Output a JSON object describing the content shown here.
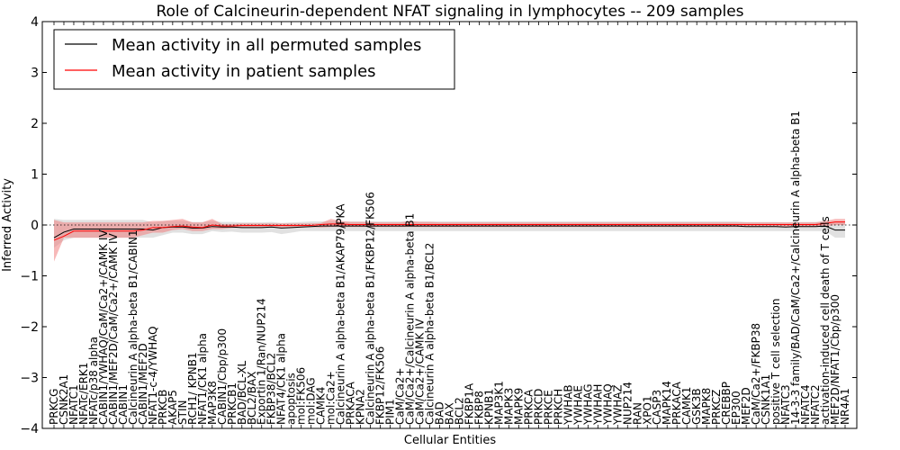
{
  "chart_data": {
    "type": "line",
    "title": "Role of Calcineurin-dependent NFAT signaling in lymphocytes -- 209 samples",
    "xlabel": "Cellular Entities",
    "ylabel": "Inferred Activity",
    "ylim": [
      -4,
      4
    ],
    "yticks": [
      -4,
      -3,
      -2,
      -1,
      0,
      1,
      2,
      3,
      4
    ],
    "ytick_labels": [
      "−4",
      "−3",
      "−2",
      "−1",
      "0",
      "1",
      "2",
      "3",
      "4"
    ],
    "legend": {
      "placement": "top-left"
    },
    "colors": {
      "permuted": "#000000",
      "patient": "#ff0000",
      "permuted_band": "#c8c8c8",
      "patient_band": "#f08080"
    },
    "categories": [
      "PRKCG",
      "CSNK2A1",
      "NFATC1",
      "NFATc/ERK1",
      "NFATc/p38 alpha",
      "CABIN1/YWHAQ/CaM/Ca2+/CAMK IV",
      "CABIN1/MEF2D/CaM/Ca2+/CAMK IV",
      "CABIN1",
      "Calcineurin A alpha-beta B1/CABIN1",
      "CABIN1/MEF2D",
      "NFAT1-c-4/YWHAQ",
      "PRKCB",
      "AKAP5",
      "STIN",
      "RCH1/ KPNB1",
      "NFAT1/CK1 alpha",
      "MAP3K8",
      "CABIN1/Cbp/p300",
      "PRKCB1",
      "BAD/BCL-XL",
      "BCL2/BAX",
      "Exportin 1/Ran/NUP214",
      "FKBP38/BCL2",
      "NFAT4/CK1 alpha",
      "apoptosis",
      "mol:FK506",
      "mol:DAG",
      "CAMK4",
      "mol:Ca2+",
      "Calcineurin A alpha-beta B1/AKAP79/PKA",
      "PRKACA",
      "KPNA2",
      "Calcineurin A alpha-beta B1/FKBP12/FK506",
      "FKBP12/FK506",
      "PIM1",
      "CaM/Ca2+",
      "CaM/Ca2+/Calcineurin A alpha-beta B1",
      "CaM/Ca2+/CAMK IV",
      "Calcineurin A alpha-beta B1/BCL2",
      "BAD",
      "BAX",
      "BCL2",
      "FKBP1A",
      "FKBP8",
      "KPNB1",
      "MAP3K1",
      "MAPK3",
      "MAPK9",
      "PRKCA",
      "PRKCD",
      "PRKCE",
      "PRKCH",
      "YWHAB",
      "YWHAE",
      "YWHAG",
      "YWHAH",
      "YWHAQ",
      "YWHAZ",
      "NUP214",
      "RAN",
      "XPO1",
      "CASP3",
      "MAPK14",
      "PRKACA",
      "CAMK1",
      "GSK3B",
      "MAPK8",
      "PRKCZ",
      "CREBBP",
      "EP300",
      "MEF2D",
      "CaM/Ca2+/FKBP38",
      "CSNK1A1",
      "positive T cell selection",
      "NFATC3",
      "14-3-3 family/BAD/CaM/Ca2+/Calcineurin A alpha-beta B1",
      "NFATC4",
      "NFATC2",
      "activation-induced cell death of T cells",
      "MEF2D/NFAT1/Cbp/p300",
      "NR4A1"
    ],
    "series": [
      {
        "name": "Mean activity in all permuted samples",
        "values": [
          -0.25,
          -0.14,
          -0.08,
          -0.08,
          -0.08,
          -0.08,
          -0.08,
          -0.08,
          -0.08,
          -0.08,
          -0.1,
          -0.05,
          -0.04,
          -0.04,
          -0.06,
          -0.06,
          -0.03,
          -0.04,
          -0.04,
          -0.05,
          -0.05,
          -0.05,
          -0.04,
          -0.06,
          -0.05,
          -0.04,
          -0.03,
          -0.02,
          -0.02,
          -0.02,
          -0.02,
          -0.02,
          -0.02,
          -0.02,
          -0.02,
          -0.02,
          -0.02,
          -0.02,
          -0.02,
          -0.02,
          -0.02,
          -0.02,
          -0.02,
          -0.02,
          -0.02,
          -0.02,
          -0.02,
          -0.02,
          -0.02,
          -0.02,
          -0.02,
          -0.02,
          -0.02,
          -0.02,
          -0.02,
          -0.02,
          -0.02,
          -0.02,
          -0.02,
          -0.02,
          -0.02,
          -0.02,
          -0.02,
          -0.02,
          -0.02,
          -0.02,
          -0.02,
          -0.02,
          -0.02,
          -0.02,
          -0.03,
          -0.03,
          -0.03,
          -0.03,
          -0.04,
          -0.03,
          -0.03,
          -0.03,
          -0.02,
          -0.1,
          -0.1
        ],
        "band_low": [
          -0.45,
          -0.3,
          -0.25,
          -0.25,
          -0.25,
          -0.25,
          -0.25,
          -0.25,
          -0.25,
          -0.25,
          -0.25,
          -0.2,
          -0.15,
          -0.15,
          -0.18,
          -0.18,
          -0.12,
          -0.14,
          -0.13,
          -0.15,
          -0.15,
          -0.15,
          -0.14,
          -0.18,
          -0.15,
          -0.12,
          -0.12,
          -0.12,
          -0.12,
          -0.12,
          -0.12,
          -0.12,
          -0.12,
          -0.12,
          -0.12,
          -0.12,
          -0.12,
          -0.12,
          -0.12,
          -0.12,
          -0.12,
          -0.12,
          -0.12,
          -0.12,
          -0.12,
          -0.12,
          -0.12,
          -0.12,
          -0.12,
          -0.12,
          -0.12,
          -0.12,
          -0.12,
          -0.12,
          -0.12,
          -0.12,
          -0.12,
          -0.12,
          -0.12,
          -0.12,
          -0.12,
          -0.12,
          -0.12,
          -0.12,
          -0.12,
          -0.12,
          -0.12,
          -0.12,
          -0.12,
          -0.12,
          -0.12,
          -0.12,
          -0.12,
          -0.12,
          -0.12,
          -0.12,
          -0.12,
          -0.12,
          -0.12,
          -0.25,
          -0.25
        ],
        "band_high": [
          0.12,
          0.1,
          0.1,
          0.1,
          0.1,
          0.1,
          0.1,
          0.1,
          0.1,
          0.1,
          0.05,
          0.08,
          0.08,
          0.08,
          0.06,
          0.06,
          0.08,
          0.06,
          0.06,
          0.05,
          0.05,
          0.05,
          0.06,
          0.04,
          0.05,
          0.06,
          0.07,
          0.07,
          0.07,
          0.07,
          0.07,
          0.07,
          0.07,
          0.07,
          0.07,
          0.07,
          0.07,
          0.07,
          0.07,
          0.07,
          0.07,
          0.07,
          0.07,
          0.07,
          0.07,
          0.07,
          0.07,
          0.07,
          0.07,
          0.07,
          0.07,
          0.07,
          0.07,
          0.07,
          0.07,
          0.07,
          0.07,
          0.07,
          0.07,
          0.07,
          0.07,
          0.07,
          0.07,
          0.07,
          0.07,
          0.07,
          0.07,
          0.07,
          0.07,
          0.07,
          0.06,
          0.06,
          0.06,
          0.06,
          0.05,
          0.06,
          0.06,
          0.06,
          0.07,
          0.05,
          0.05
        ]
      },
      {
        "name": "Mean activity in patient samples",
        "values": [
          -0.3,
          -0.22,
          -0.12,
          -0.12,
          -0.12,
          -0.12,
          -0.12,
          -0.12,
          -0.12,
          -0.1,
          -0.05,
          -0.05,
          -0.03,
          -0.02,
          -0.04,
          -0.05,
          0.0,
          -0.02,
          -0.02,
          -0.01,
          -0.01,
          -0.01,
          -0.01,
          -0.01,
          -0.01,
          -0.01,
          -0.01,
          0.01,
          0.02,
          0.02,
          0.01,
          0.01,
          0.01,
          0.01,
          0.01,
          0.01,
          0.01,
          0.01,
          0.01,
          0.01,
          0.01,
          0.01,
          0.01,
          0.01,
          0.01,
          0.01,
          0.01,
          0.01,
          0.01,
          0.01,
          0.01,
          0.01,
          0.01,
          0.01,
          0.01,
          0.01,
          0.01,
          0.01,
          0.01,
          0.01,
          0.01,
          0.01,
          0.01,
          0.01,
          0.01,
          0.01,
          0.01,
          0.01,
          0.01,
          0.01,
          0.01,
          0.01,
          0.01,
          0.01,
          0.01,
          0.01,
          0.01,
          0.01,
          0.03,
          0.06,
          0.06
        ],
        "band_low": [
          -0.72,
          -0.25,
          -0.25,
          -0.25,
          -0.25,
          -0.25,
          -0.25,
          -0.25,
          -0.25,
          -0.2,
          -0.15,
          -0.15,
          -0.1,
          -0.08,
          -0.12,
          -0.12,
          -0.08,
          -0.08,
          -0.06,
          -0.05,
          -0.05,
          -0.05,
          -0.05,
          -0.05,
          -0.05,
          -0.05,
          -0.04,
          -0.05,
          -0.04,
          -0.04,
          -0.04,
          -0.04,
          -0.04,
          -0.04,
          -0.04,
          -0.04,
          -0.04,
          -0.04,
          -0.04,
          -0.04,
          -0.04,
          -0.04,
          -0.04,
          -0.04,
          -0.04,
          -0.04,
          -0.04,
          -0.04,
          -0.04,
          -0.04,
          -0.04,
          -0.04,
          -0.04,
          -0.04,
          -0.04,
          -0.04,
          -0.04,
          -0.04,
          -0.04,
          -0.04,
          -0.04,
          -0.04,
          -0.04,
          -0.04,
          -0.04,
          -0.04,
          -0.04,
          -0.04,
          -0.04,
          -0.04,
          -0.04,
          -0.04,
          -0.04,
          -0.04,
          -0.04,
          -0.04,
          -0.04,
          -0.04,
          -0.03,
          0.0,
          0.0
        ],
        "band_high": [
          0.1,
          0.05,
          0.05,
          0.05,
          0.05,
          0.05,
          0.05,
          0.05,
          0.05,
          0.05,
          0.08,
          0.08,
          0.1,
          0.12,
          0.05,
          0.05,
          0.12,
          0.02,
          0.02,
          0.03,
          0.03,
          0.03,
          0.03,
          0.03,
          0.03,
          0.03,
          0.03,
          0.04,
          0.12,
          0.08,
          0.06,
          0.06,
          0.06,
          0.05,
          0.05,
          0.05,
          0.08,
          0.06,
          0.06,
          0.05,
          0.05,
          0.05,
          0.05,
          0.05,
          0.05,
          0.05,
          0.05,
          0.05,
          0.05,
          0.05,
          0.05,
          0.05,
          0.05,
          0.05,
          0.05,
          0.05,
          0.05,
          0.05,
          0.05,
          0.05,
          0.05,
          0.05,
          0.05,
          0.05,
          0.05,
          0.05,
          0.05,
          0.05,
          0.05,
          0.05,
          0.05,
          0.05,
          0.05,
          0.05,
          0.05,
          0.05,
          0.05,
          0.05,
          0.08,
          0.12,
          0.12
        ]
      }
    ]
  }
}
